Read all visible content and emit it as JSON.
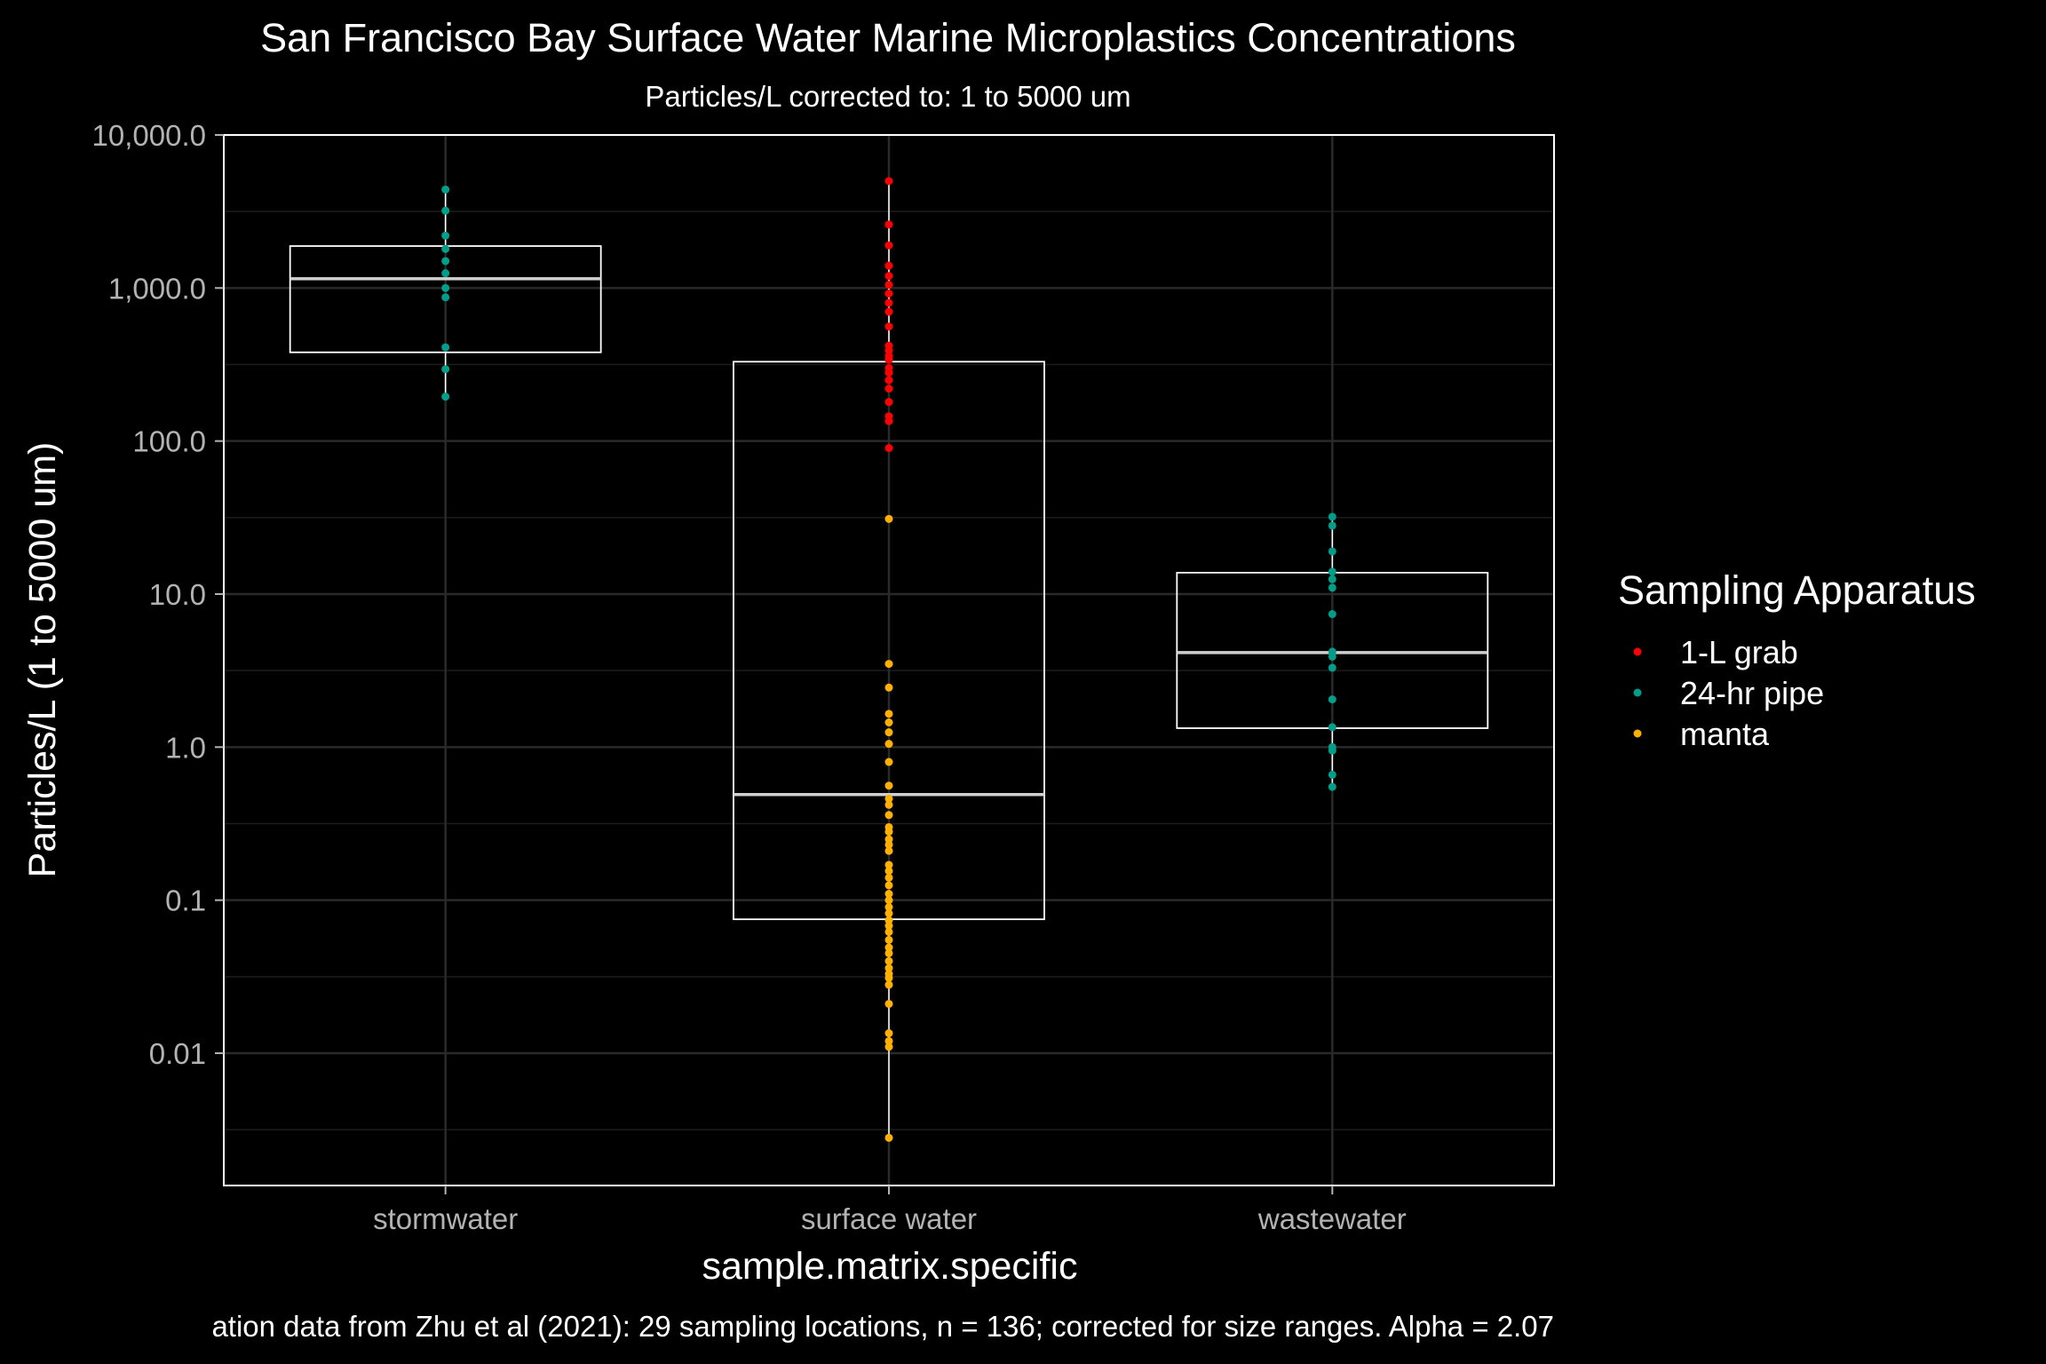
{
  "chart_data": {
    "type": "box",
    "title": "San Francisco Bay Surface Water Marine Microplastics Concentrations",
    "subtitle": "Particles/L corrected to: 1 to 5000 um",
    "xlabel": "sample.matrix.specific",
    "ylabel": "Particles/L (1 to 5000 um)",
    "y_scale": "log10",
    "ylim": [
      0.0015,
      10000
    ],
    "y_ticks": [
      10000,
      1000,
      100,
      10,
      1,
      0.1,
      0.01
    ],
    "y_tick_labels": [
      "10,000.0",
      "1,000.0",
      "100.0",
      "10.0",
      "1.0",
      "0.1",
      "0.01"
    ],
    "categories": [
      "stormwater",
      "surface water",
      "wastewater"
    ],
    "grid": true,
    "legend": {
      "title": "Sampling Apparatus",
      "position": "right",
      "entries": [
        {
          "label": "1-L grab",
          "color": "#ff0000"
        },
        {
          "label": "24-hr pipe",
          "color": "#009e8a"
        },
        {
          "label": "manta",
          "color": "#ffb000"
        }
      ]
    },
    "boxes": [
      {
        "category": "stormwater",
        "q1": 380,
        "median": 1150,
        "q3": 1880,
        "whisker_low": 195,
        "whisker_high": 4400
      },
      {
        "category": "surface water",
        "q1": 0.075,
        "median": 0.49,
        "q3": 330,
        "whisker_low": 0.0028,
        "whisker_high": 5000
      },
      {
        "category": "wastewater",
        "q1": 1.33,
        "median": 4.15,
        "q3": 13.8,
        "whisker_low": 0.55,
        "whisker_high": 32
      }
    ],
    "series": [
      {
        "name": "1-L grab",
        "category": "surface water",
        "values": [
          5000,
          2600,
          1900,
          1400,
          1200,
          1050,
          920,
          800,
          700,
          560,
          420,
          390,
          360,
          340,
          300,
          280,
          250,
          220,
          180,
          145,
          135,
          90
        ]
      },
      {
        "name": "24-hr pipe",
        "category": "stormwater",
        "values": [
          4400,
          3200,
          2200,
          1800,
          1500,
          1250,
          1000,
          870,
          410,
          295,
          195
        ]
      },
      {
        "name": "24-hr pipe",
        "category": "wastewater",
        "values": [
          32,
          28,
          19,
          14,
          12.5,
          11,
          7.4,
          4.2,
          3.9,
          3.3,
          2.05,
          1.35,
          1.0,
          0.95,
          0.66,
          0.55
        ]
      },
      {
        "name": "manta",
        "category": "surface water",
        "values": [
          31,
          3.5,
          2.45,
          1.65,
          1.45,
          1.25,
          1.05,
          0.8,
          0.56,
          0.46,
          0.42,
          0.36,
          0.3,
          0.28,
          0.25,
          0.23,
          0.21,
          0.17,
          0.155,
          0.14,
          0.125,
          0.11,
          0.1,
          0.09,
          0.082,
          0.074,
          0.068,
          0.062,
          0.055,
          0.049,
          0.045,
          0.04,
          0.036,
          0.033,
          0.031,
          0.028,
          0.021,
          0.0135,
          0.012,
          0.011,
          0.0028
        ]
      }
    ],
    "caption": "ation data from Zhu et al (2021): 29 sampling locations, n = 136; corrected for size ranges. Alpha =  2.07"
  }
}
